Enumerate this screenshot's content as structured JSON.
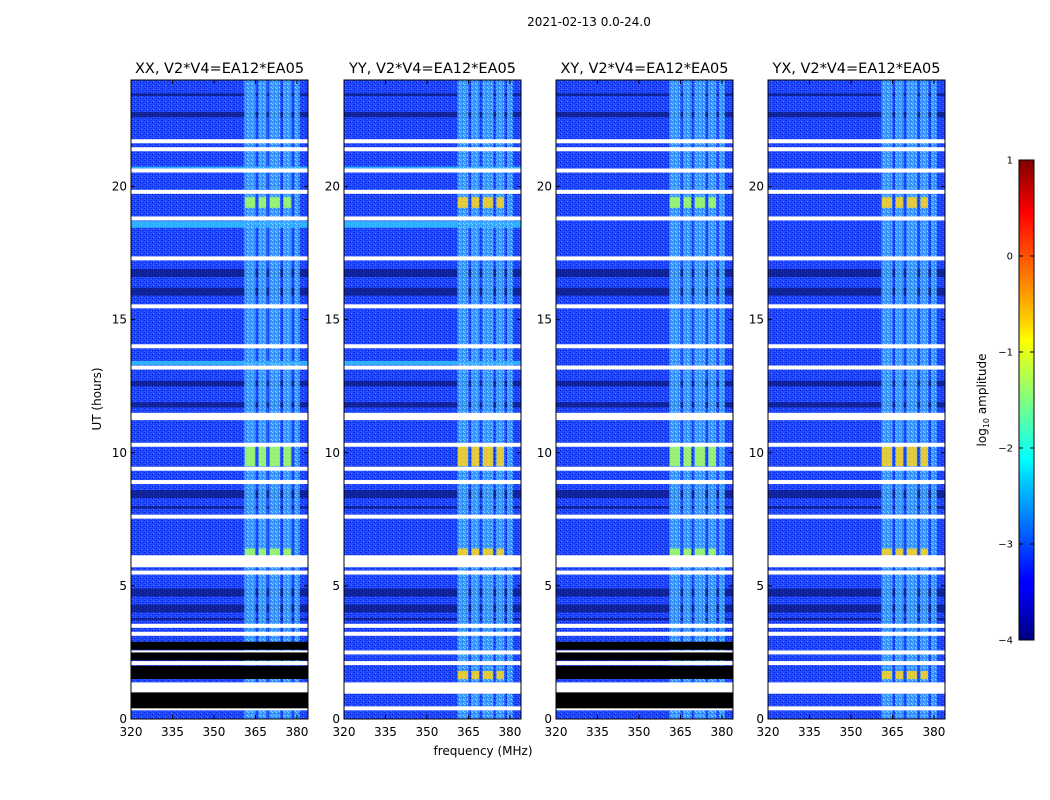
{
  "figure": {
    "suptitle": "2021-02-13 0.0-24.0"
  },
  "chart_data": {
    "type": "heatmap",
    "title": "2021-02-13 0.0-24.0",
    "xlabel": "frequency (MHz)",
    "ylabel": "UT (hours)",
    "xlim": [
      320,
      384
    ],
    "ylim": [
      0,
      24
    ],
    "xticks": [
      320,
      335,
      350,
      365,
      380
    ],
    "yticks": [
      0,
      5,
      10,
      15,
      20
    ],
    "panels": [
      {
        "title": "XX, V2*V4=EA12*EA05",
        "key": "xx"
      },
      {
        "title": "YY, V2*V4=EA12*EA05",
        "key": "yy"
      },
      {
        "title": "XY, V2*V4=EA12*EA05",
        "key": "xy"
      },
      {
        "title": "YX, V2*V4=EA12*EA05",
        "key": "yx"
      }
    ],
    "rfi_bands_mhz": [
      [
        361,
        365
      ],
      [
        366,
        369
      ],
      [
        370,
        374
      ],
      [
        375,
        378
      ],
      [
        379,
        381
      ]
    ],
    "strong_rfi_hours": [
      [
        19.2,
        19.6
      ],
      [
        9.5,
        10.3
      ],
      [
        5.9,
        6.4
      ],
      [
        1.5,
        1.8
      ]
    ],
    "flagged_hours_white": [
      21.7,
      21.4,
      20.6,
      19.8,
      18.8,
      17.3,
      15.5,
      14.0,
      13.2,
      11.3,
      10.3,
      9.4,
      8.9,
      7.6,
      5.9,
      5.5,
      3.5,
      3.2,
      2.5,
      2.1,
      1.3,
      0.4
    ],
    "missing_data_hours": [
      [
        2.6,
        2.9
      ],
      [
        2.2,
        2.5
      ],
      [
        1.5,
        2.0
      ],
      [
        0.4,
        1.0
      ]
    ],
    "colorbar": {
      "label": "log10 amplitude",
      "label_main": "log",
      "label_sub": "10",
      "label_rest": " amplitude",
      "range": [
        -4,
        1
      ],
      "ticks": [
        "1",
        "0",
        "−1",
        "−2",
        "−3",
        "−4"
      ],
      "tick_values": [
        1,
        0,
        -1,
        -2,
        -3,
        -4
      ]
    }
  }
}
